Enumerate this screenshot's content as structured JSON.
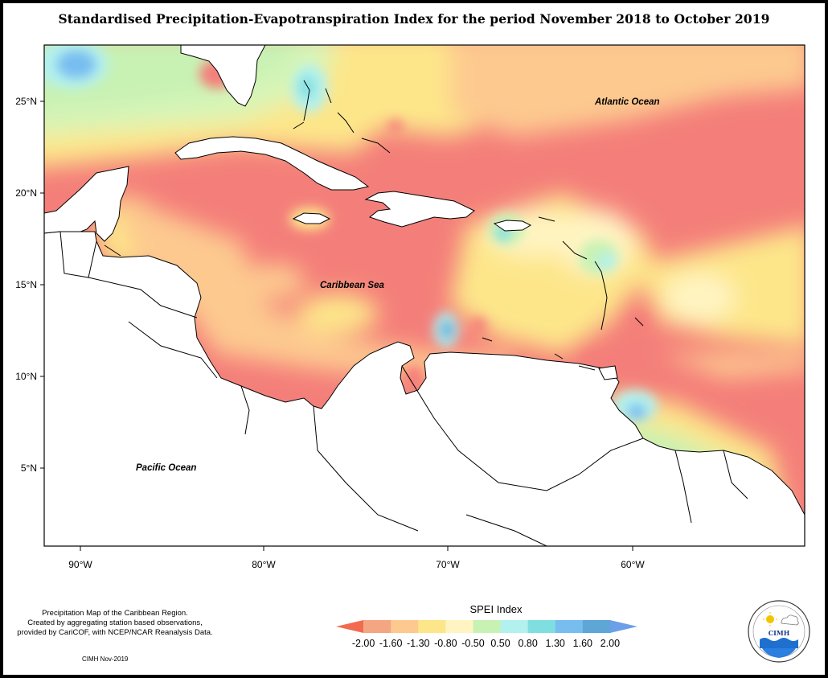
{
  "title": "Standardised Precipitation-Evapotranspiration Index for the period November 2018 to October 2019",
  "map": {
    "lat_labels": [
      "25°N",
      "20°N",
      "15°N",
      "10°N",
      "5°N"
    ],
    "lon_labels": [
      "90°W",
      "80°W",
      "70°W",
      "60°W"
    ],
    "place_labels": {
      "atlantic": "Atlantic Ocean",
      "caribbean": "Caribbean Sea",
      "pacific": "Pacific Ocean"
    },
    "lat_range": [
      1,
      28
    ],
    "lon_range": [
      -92,
      -50
    ]
  },
  "legend": {
    "title": "SPEI Index",
    "ticks": [
      "-2.00",
      "-1.60",
      "-1.30",
      "-0.80",
      "-0.50",
      "0.50",
      "0.80",
      "1.30",
      "1.60",
      "2.00"
    ],
    "colors": [
      "#f26a4f",
      "#f4a582",
      "#fdc98f",
      "#fde68a",
      "#fff4c2",
      "#c8f2b4",
      "#b3f1ee",
      "#7fdfe0",
      "#78bdf0",
      "#5da6d6",
      "#6b9fe8"
    ]
  },
  "notes": {
    "line1": "Precipitation Map of the Caribbean Region.",
    "line2": "Created by aggregating station based observations,",
    "line3": "provided by CariCOF, with NCEP/NCAR Reanalysis Data.",
    "date": "CIMH Nov-2019"
  },
  "logo": {
    "text": "CIMH"
  }
}
